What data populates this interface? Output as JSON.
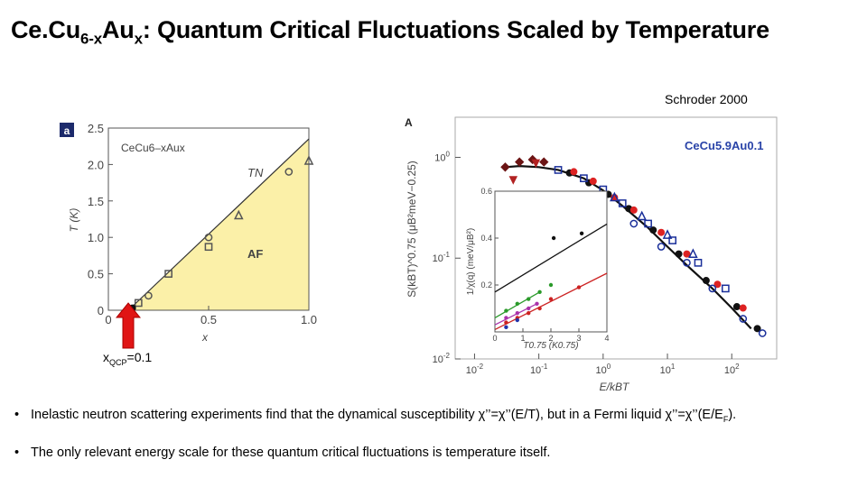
{
  "slide": {
    "title_main": "Ce.Cu",
    "title_sub1": "6-x",
    "title_mid": "Au",
    "title_sub2": "x",
    "title_rest": ":  Quantum Critical Fluctuations Scaled by Temperature",
    "credit": "Schroder 2000",
    "qcp_label": "x",
    "qcp_sub": "QCP",
    "qcp_value": "=0.1",
    "bullets": [
      {
        "pre": "Inelastic neutron scattering experiments find that the dynamical susceptibility χ’’=χ’’(E/T),  but in a Fermi liquid χ’’=χ’’(E/E",
        "sub": "F",
        "post": ")."
      },
      {
        "pre": "The only relevant energy scale for these quantum critical fluctuations is temperature itself."
      }
    ]
  },
  "chart_data": [
    {
      "type": "scatter",
      "panel_label": "a",
      "compound_label": "CeCu6–xAux",
      "region_labels": [
        "TN",
        "AF"
      ],
      "xlabel": "x",
      "ylabel": "T (K)",
      "xlim": [
        0,
        1.0
      ],
      "ylim": [
        0,
        2.5
      ],
      "x_ticks": [
        "0",
        "0.5",
        "1.0"
      ],
      "y_ticks": [
        "0",
        "0.5",
        "1.0",
        "1.5",
        "2.0",
        "2.5"
      ],
      "series": [
        {
          "marker": "open-circle",
          "x": [
            0.2,
            0.5,
            0.9
          ],
          "y": [
            0.2,
            1.0,
            1.9
          ]
        },
        {
          "marker": "open-square",
          "x": [
            0.15,
            0.3,
            0.5
          ],
          "y": [
            0.1,
            0.5,
            0.87
          ]
        },
        {
          "marker": "open-triangle",
          "x": [
            0.65,
            1.0
          ],
          "y": [
            1.3,
            2.05
          ]
        },
        {
          "marker": "filled-circle",
          "x": [
            0.1,
            0.12
          ],
          "y": [
            0.03,
            0.03
          ]
        }
      ],
      "phase_boundary": {
        "x": [
          0.1,
          1.0
        ],
        "y": [
          0.0,
          2.35
        ]
      },
      "annotation": "xQCP=0.1"
    },
    {
      "type": "scatter",
      "panel_label": "A",
      "compound_label": "CeCu5.9Au0.1",
      "xlabel": "E/kBT",
      "ylabel": "S(kBT)^0.75 (μB²meV−0.25)",
      "xscale": "log",
      "yscale": "log",
      "xlim": [
        0.005,
        500
      ],
      "ylim": [
        0.01,
        2.5
      ],
      "x_ticks": [
        "10-2",
        "10-1",
        "100",
        "101",
        "102"
      ],
      "y_ticks": [
        "10-2",
        "10-1",
        "100"
      ],
      "scaling_curve": {
        "x": [
          0.03,
          0.05,
          0.1,
          0.2,
          0.5,
          1,
          2,
          5,
          10,
          20,
          50,
          100,
          200
        ],
        "y": [
          0.8,
          0.82,
          0.8,
          0.75,
          0.62,
          0.47,
          0.33,
          0.2,
          0.13,
          0.085,
          0.05,
          0.032,
          0.02
        ]
      },
      "series": [
        {
          "marker": "filled-circle",
          "color": "#111111",
          "x": [
            0.3,
            0.6,
            1.2,
            2.5,
            6,
            15,
            40,
            120,
            250
          ],
          "y": [
            0.7,
            0.56,
            0.43,
            0.31,
            0.19,
            0.11,
            0.06,
            0.033,
            0.02
          ]
        },
        {
          "marker": "filled-circle",
          "color": "#dd2222",
          "x": [
            0.35,
            0.7,
            1.5,
            3,
            8,
            20,
            60,
            150
          ],
          "y": [
            0.72,
            0.58,
            0.4,
            0.3,
            0.18,
            0.11,
            0.055,
            0.032
          ]
        },
        {
          "marker": "open-square",
          "color": "#1a2f9a",
          "x": [
            0.2,
            0.5,
            1,
            2,
            5,
            12,
            30,
            80
          ],
          "y": [
            0.75,
            0.62,
            0.48,
            0.35,
            0.22,
            0.15,
            0.09,
            0.05
          ]
        },
        {
          "marker": "open-circle",
          "color": "#1a2f9a",
          "x": [
            3,
            8,
            20,
            50,
            150,
            300
          ],
          "y": [
            0.22,
            0.13,
            0.09,
            0.05,
            0.025,
            0.018
          ]
        },
        {
          "marker": "open-triangle",
          "color": "#1a2f9a",
          "x": [
            1.5,
            4,
            10,
            25
          ],
          "y": [
            0.4,
            0.26,
            0.17,
            0.11
          ]
        },
        {
          "marker": "filled-diamond",
          "color": "#6b1414",
          "x": [
            0.03,
            0.05,
            0.08,
            0.12
          ],
          "y": [
            0.8,
            0.9,
            0.95,
            0.9
          ]
        },
        {
          "marker": "filled-triangle-down",
          "color": "#b22222",
          "x": [
            0.04,
            0.09
          ],
          "y": [
            0.6,
            0.88
          ]
        }
      ],
      "inset": {
        "xlabel": "T0.75 (K0.75)",
        "ylabel": "1/χ(q) (meV/μB²)",
        "xlim": [
          0,
          4
        ],
        "ylim": [
          0,
          0.6
        ],
        "x_ticks": [
          "0",
          "1",
          "2",
          "3",
          "4"
        ],
        "y_ticks": [
          "0.2",
          "0.4",
          "0.6"
        ],
        "lines": [
          {
            "color": "#111111",
            "x": [
              0,
              4
            ],
            "y": [
              0.17,
              0.46
            ]
          },
          {
            "color": "#cc2222",
            "x": [
              0,
              4
            ],
            "y": [
              0.01,
              0.25
            ]
          },
          {
            "color": "#2a9a2a",
            "x": [
              0,
              1.6
            ],
            "y": [
              0.06,
              0.17
            ]
          },
          {
            "color": "#aa33aa",
            "x": [
              0,
              1.5
            ],
            "y": [
              0.03,
              0.12
            ]
          }
        ],
        "points": [
          {
            "color": "#111111",
            "x": [
              2.1,
              3.1
            ],
            "y": [
              0.4,
              0.42
            ]
          },
          {
            "color": "#cc2222",
            "x": [
              0.4,
              0.8,
              1.2,
              1.6,
              2.0,
              3.0
            ],
            "y": [
              0.04,
              0.06,
              0.08,
              0.1,
              0.14,
              0.19
            ]
          },
          {
            "color": "#2a9a2a",
            "x": [
              0.4,
              0.8,
              1.2,
              1.6,
              2.0
            ],
            "y": [
              0.09,
              0.12,
              0.14,
              0.17,
              0.2
            ]
          },
          {
            "color": "#aa33aa",
            "x": [
              0.4,
              0.8,
              1.2,
              1.5
            ],
            "y": [
              0.06,
              0.08,
              0.1,
              0.12
            ]
          },
          {
            "color": "#2233aa",
            "x": [
              0.4,
              0.8
            ],
            "y": [
              0.02,
              0.05
            ]
          }
        ]
      }
    }
  ]
}
